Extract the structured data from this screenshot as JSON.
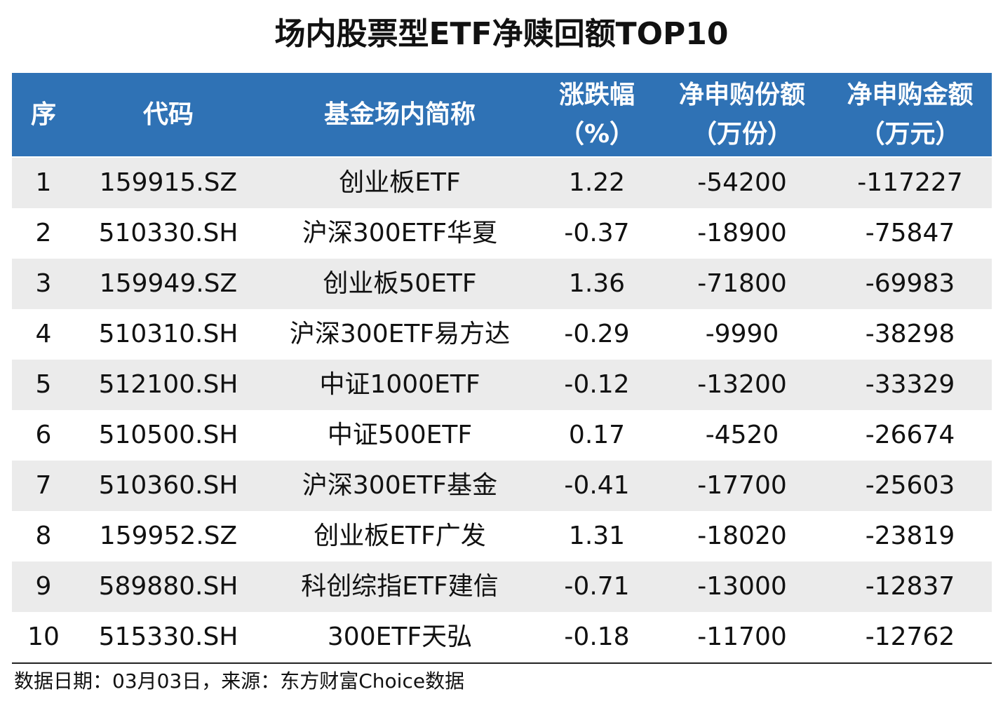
{
  "title": "场内股票型ETF净赎回额TOP10",
  "table": {
    "headers": [
      [
        "序"
      ],
      [
        "代码"
      ],
      [
        "基金场内简称"
      ],
      [
        "涨跌幅",
        "（%）"
      ],
      [
        "净申购份额",
        "（万份）"
      ],
      [
        "净申购金额",
        "（万元）"
      ]
    ],
    "rows": [
      [
        "1",
        "159915.SZ",
        "创业板ETF",
        "1.22",
        "-54200",
        "-117227"
      ],
      [
        "2",
        "510330.SH",
        "沪深300ETF华夏",
        "-0.37",
        "-18900",
        "-75847"
      ],
      [
        "3",
        "159949.SZ",
        "创业板50ETF",
        "1.36",
        "-71800",
        "-69983"
      ],
      [
        "4",
        "510310.SH",
        "沪深300ETF易方达",
        "-0.29",
        "-9990",
        "-38298"
      ],
      [
        "5",
        "512100.SH",
        "中证1000ETF",
        "-0.12",
        "-13200",
        "-33329"
      ],
      [
        "6",
        "510500.SH",
        "中证500ETF",
        "0.17",
        "-4520",
        "-26674"
      ],
      [
        "7",
        "510360.SH",
        "沪深300ETF基金",
        "-0.41",
        "-17700",
        "-25603"
      ],
      [
        "8",
        "159952.SZ",
        "创业板ETF广发",
        "1.31",
        "-18020",
        "-23819"
      ],
      [
        "9",
        "589880.SH",
        "科创综指ETF建信",
        "-0.71",
        "-13000",
        "-12837"
      ],
      [
        "10",
        "515330.SH",
        "300ETF天弘",
        "-0.18",
        "-11700",
        "-12762"
      ]
    ]
  },
  "footer": "数据日期：03月03日，来源：东方财富Choice数据"
}
